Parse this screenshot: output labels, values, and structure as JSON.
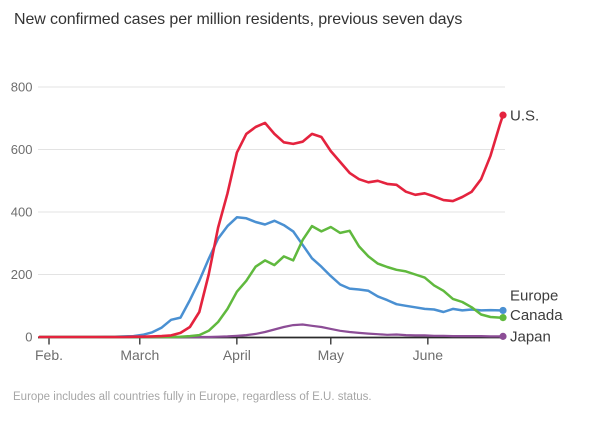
{
  "title": "New confirmed cases per million residents, previous seven days",
  "footnote": "Europe includes all countries fully in Europe, regardless of E.U. status.",
  "chart_data": {
    "type": "line",
    "title": "New confirmed cases per million residents, previous seven days",
    "x_unit": "days since Feb 1, 2020 (series runs late Jan through June 25)",
    "days": [
      -3,
      0,
      3,
      6,
      9,
      12,
      15,
      18,
      21,
      24,
      27,
      30,
      33,
      36,
      39,
      42,
      45,
      48,
      51,
      54,
      57,
      60,
      63,
      66,
      69,
      72,
      75,
      78,
      81,
      84,
      87,
      90,
      93,
      96,
      99,
      102,
      105,
      108,
      111,
      114,
      117,
      120,
      123,
      126,
      129,
      132,
      135,
      138,
      141,
      144,
      145
    ],
    "series": [
      {
        "name": "U.S.",
        "color": "#e4233e",
        "line_width": 2.6,
        "label_offset_y": 0,
        "values": [
          0,
          0,
          0,
          0,
          0,
          0,
          0,
          0,
          0,
          0,
          1,
          1,
          2,
          3,
          5,
          13,
          32,
          80,
          200,
          350,
          460,
          590,
          650,
          672,
          685,
          650,
          623,
          618,
          625,
          650,
          640,
          595,
          560,
          525,
          505,
          495,
          500,
          490,
          487,
          465,
          455,
          460,
          450,
          438,
          435,
          448,
          465,
          505,
          580,
          680,
          710
        ]
      },
      {
        "name": "Europe",
        "color": "#4a90d2",
        "line_width": 2.5,
        "label_offset_y": -15,
        "values": [
          0,
          0,
          0,
          0,
          0,
          0,
          0,
          1,
          1,
          2,
          3,
          7,
          15,
          30,
          55,
          62,
          118,
          180,
          250,
          315,
          355,
          383,
          380,
          368,
          360,
          372,
          358,
          338,
          295,
          252,
          225,
          195,
          168,
          155,
          152,
          148,
          130,
          118,
          105,
          100,
          95,
          90,
          88,
          80,
          90,
          85,
          88,
          85,
          86,
          85,
          85
        ]
      },
      {
        "name": "Canada",
        "color": "#60b93e",
        "line_width": 2.5,
        "label_offset_y": -3,
        "values": [
          0,
          0,
          0,
          0,
          0,
          0,
          0,
          0,
          0,
          0,
          0,
          0,
          0,
          0,
          0,
          1,
          3,
          6,
          20,
          48,
          90,
          145,
          180,
          225,
          245,
          230,
          258,
          245,
          310,
          355,
          338,
          352,
          333,
          340,
          290,
          258,
          235,
          224,
          215,
          210,
          200,
          190,
          165,
          148,
          122,
          112,
          95,
          72,
          64,
          62,
          62
        ]
      },
      {
        "name": "Japan",
        "color": "#8c4d96",
        "line_width": 2.2,
        "label_offset_y": 0,
        "values": [
          0,
          0,
          0,
          0,
          0,
          0,
          0,
          0,
          0,
          0,
          0,
          0,
          0,
          0,
          0,
          0,
          0,
          0,
          0,
          1,
          2,
          4,
          6,
          10,
          16,
          24,
          32,
          38,
          40,
          36,
          32,
          26,
          20,
          16,
          13,
          11,
          9,
          7,
          8,
          6,
          5,
          5,
          4,
          4,
          3,
          3,
          3,
          3,
          2,
          2,
          2
        ]
      }
    ],
    "draw_order": [
      3,
      1,
      2,
      0
    ],
    "ylim": [
      0,
      800
    ],
    "yticks": [
      0,
      200,
      400,
      600,
      800
    ],
    "xticks": {
      "labels": [
        "Feb.",
        "March",
        "April",
        "May",
        "June"
      ],
      "days": [
        0,
        29,
        60,
        90,
        121
      ]
    },
    "grid": "horizontal gridlines at 200/400/600/800, dark baseline at 0",
    "legend_position": "direct labels with end dots at right edge of lines",
    "colors": {
      "grid": "#e3e3e3",
      "axis": "#2b2b2b",
      "tick_labels": "#6e6e6e",
      "title": "#333333",
      "series_labels": "#3d3d3d",
      "footnote": "#a6a6a6",
      "background": "#ffffff"
    }
  }
}
